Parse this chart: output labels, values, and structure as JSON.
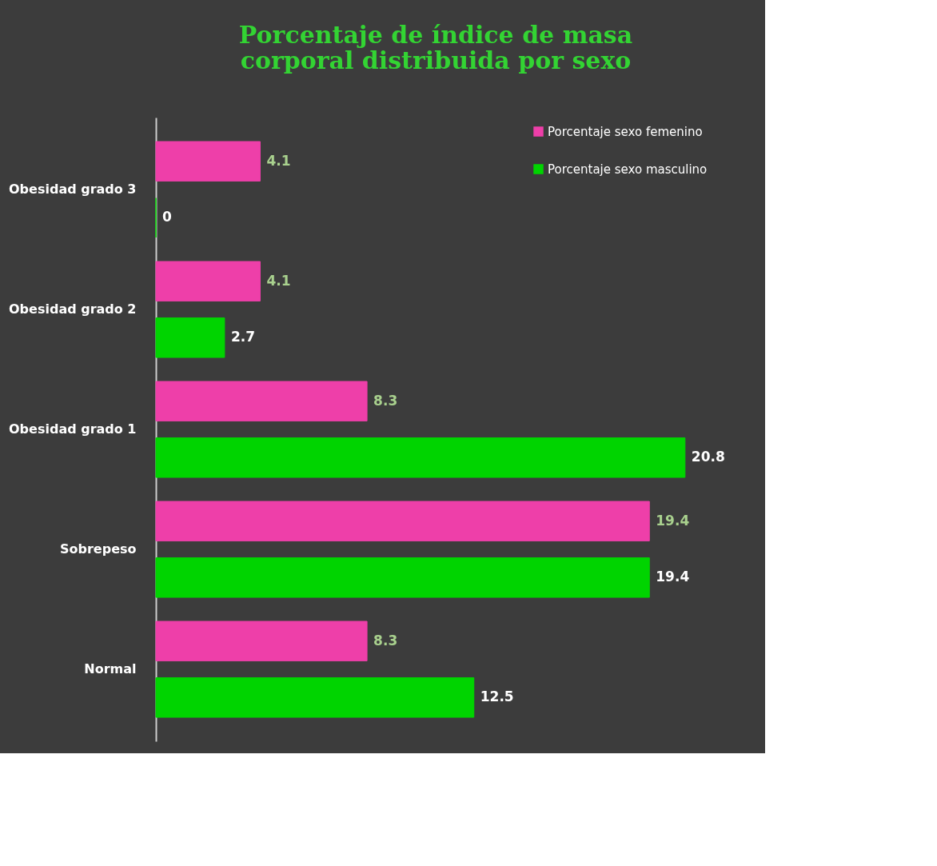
{
  "chart_data": {
    "type": "bar",
    "orientation": "horizontal",
    "title": "Porcentaje de índice de masa corporal distribuida por sexo",
    "categories": [
      "Obesidad grado 3",
      "Obesidad grado 2",
      "Obesidad grado 1",
      "Sobrepeso",
      "Normal"
    ],
    "series": [
      {
        "name": "Porcentaje sexo femenino",
        "color": "#ee3fa9",
        "values": [
          4.1,
          4.1,
          8.3,
          19.4,
          8.3
        ]
      },
      {
        "name": "Porcentaje sexo masculino",
        "color": "#00d400",
        "values": [
          0,
          2.7,
          20.8,
          19.4,
          12.5
        ]
      }
    ],
    "data_labels": true,
    "legend": "top right"
  }
}
